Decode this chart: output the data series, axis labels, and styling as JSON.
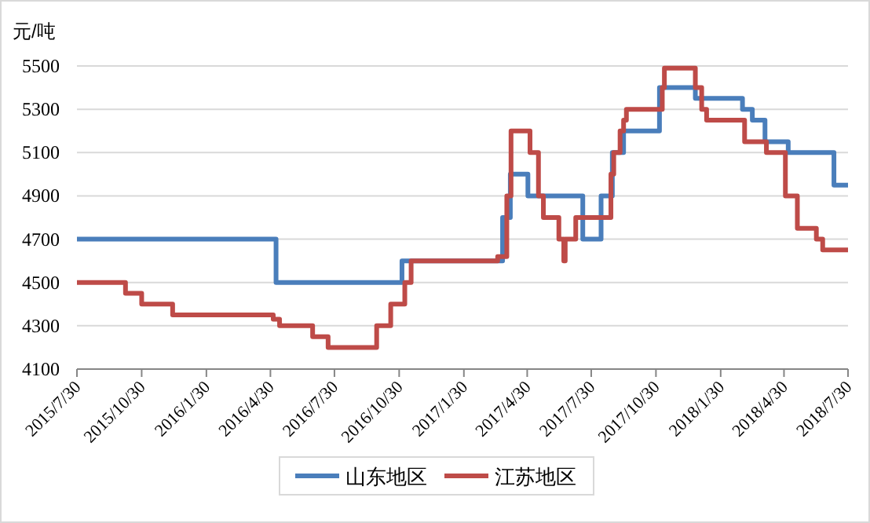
{
  "chart_data": {
    "type": "step",
    "ylabel": "元/吨",
    "xlim": [
      "2015-07-30",
      "2018-07-30"
    ],
    "ylim": [
      4100,
      5500
    ],
    "yticks": [
      4100,
      4300,
      4500,
      4700,
      4900,
      5100,
      5300,
      5500
    ],
    "xticks": [
      {
        "value": "2015-07-30",
        "label": "2015/7/30"
      },
      {
        "value": "2015-10-30",
        "label": "2015/10/30"
      },
      {
        "value": "2016-01-30",
        "label": "2016/1/30"
      },
      {
        "value": "2016-04-30",
        "label": "2016/4/30"
      },
      {
        "value": "2016-07-30",
        "label": "2016/7/30"
      },
      {
        "value": "2016-10-30",
        "label": "2016/10/30"
      },
      {
        "value": "2017-01-30",
        "label": "2017/1/30"
      },
      {
        "value": "2017-04-30",
        "label": "2017/4/30"
      },
      {
        "value": "2017-07-30",
        "label": "2017/7/30"
      },
      {
        "value": "2017-10-30",
        "label": "2017/10/30"
      },
      {
        "value": "2018-01-30",
        "label": "2018/1/30"
      },
      {
        "value": "2018-04-30",
        "label": "2018/4/30"
      },
      {
        "value": "2018-07-30",
        "label": "2018/7/30"
      }
    ],
    "grid": "y",
    "legend": "bottom",
    "line_style": "solid",
    "series": [
      {
        "name": "山东地区",
        "color": "#4a7ebb",
        "x": [
          "2015-07-30",
          "2016-05-08",
          "2016-11-03",
          "2017-03-26",
          "2017-04-06",
          "2017-05-01",
          "2017-07-18",
          "2017-08-13",
          "2017-08-29",
          "2017-09-14",
          "2017-11-04",
          "2017-12-25",
          "2018-03-02",
          "2018-03-16",
          "2018-04-03",
          "2018-05-06",
          "2018-07-10",
          "2018-07-30"
        ],
        "values": [
          4700,
          4500,
          4600,
          4800,
          5000,
          4900,
          4700,
          4900,
          5100,
          5200,
          5400,
          5350,
          5300,
          5250,
          5150,
          5100,
          4950,
          4950
        ]
      },
      {
        "name": "江苏地区",
        "color": "#be4b48",
        "x": [
          "2015-07-30",
          "2015-10-07",
          "2015-10-30",
          "2015-12-13",
          "2016-05-04",
          "2016-05-13",
          "2016-06-29",
          "2016-07-21",
          "2016-09-28",
          "2016-10-18",
          "2016-11-07",
          "2016-11-16",
          "2017-03-19",
          "2017-04-01",
          "2017-04-07",
          "2017-05-04",
          "2017-05-16",
          "2017-05-23",
          "2017-06-14",
          "2017-06-21",
          "2017-06-23",
          "2017-07-08",
          "2017-08-27",
          "2017-08-31",
          "2017-09-09",
          "2017-09-14",
          "2017-09-18",
          "2017-11-08",
          "2017-11-11",
          "2017-12-25",
          "2018-01-03",
          "2018-01-10",
          "2018-03-05",
          "2018-04-05",
          "2018-05-02",
          "2018-05-19",
          "2018-06-15",
          "2018-06-24",
          "2018-07-30"
        ],
        "values": [
          4500,
          4450,
          4400,
          4350,
          4330,
          4300,
          4250,
          4200,
          4300,
          4400,
          4500,
          4600,
          4620,
          4900,
          5200,
          5100,
          4900,
          4800,
          4700,
          4600,
          4700,
          4800,
          5000,
          5100,
          5200,
          5250,
          5300,
          5400,
          5490,
          5400,
          5300,
          5250,
          5150,
          5100,
          4900,
          4750,
          4700,
          4650,
          4650
        ]
      }
    ]
  }
}
